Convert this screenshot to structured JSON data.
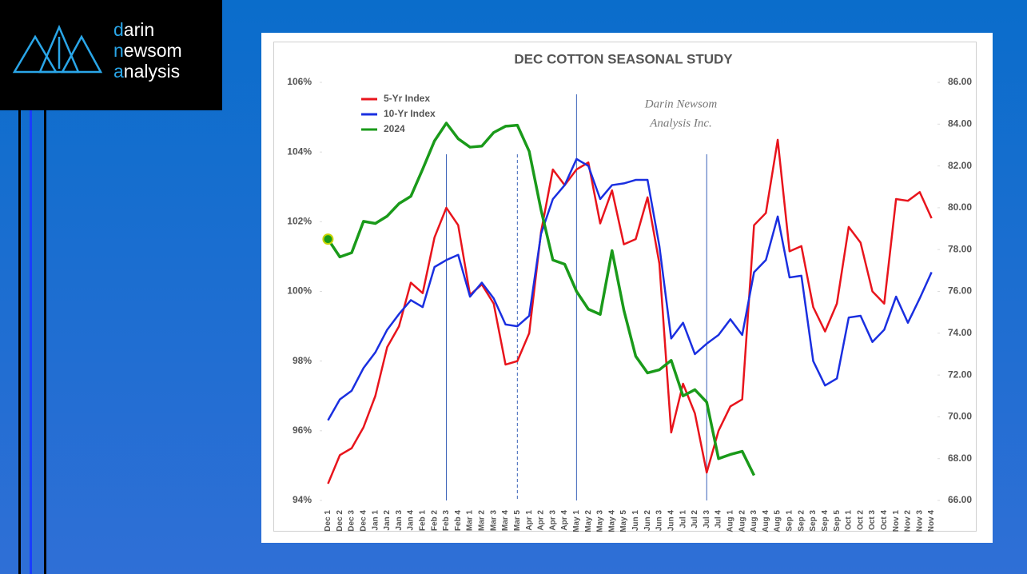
{
  "logo": {
    "lines": [
      "darin",
      "newsom",
      "analysis"
    ]
  },
  "chart_data": {
    "type": "line",
    "title": "DEC COTTON SEASONAL STUDY",
    "watermark": [
      "Darin Newsom",
      "Analysis Inc."
    ],
    "categories": [
      "Dec 1",
      "Dec 2",
      "Dec 3",
      "Dec 4",
      "Jan 1",
      "Jan 2",
      "Jan 3",
      "Jan 4",
      "Feb 1",
      "Feb 2",
      "Feb 3",
      "Feb 4",
      "Mar 1",
      "Mar 2",
      "Mar 3",
      "Mar 4",
      "Mar 5",
      "Apr 1",
      "Apr 2",
      "Apr 3",
      "Apr 4",
      "May 1",
      "May 2",
      "May 3",
      "May 4",
      "May 5",
      "Jun 1",
      "Jun 2",
      "Jun 3",
      "Jun 4",
      "Jul 1",
      "Jul 2",
      "Jul 3",
      "Jul 4",
      "Aug 1",
      "Aug 2",
      "Aug 3",
      "Aug 4",
      "Aug 5",
      "Sep 1",
      "Sep 2",
      "Sep 3",
      "Sep 4",
      "Sep 5",
      "Oct 1",
      "Oct 2",
      "Oct 3",
      "Oct 4",
      "Nov 1",
      "Nov 2",
      "Nov 3",
      "Nov 4"
    ],
    "series": [
      {
        "name": "5-Yr Index",
        "color": "#e8141c",
        "values": [
          94.48,
          95.3,
          95.5,
          96.1,
          97.0,
          98.4,
          99.0,
          100.25,
          99.95,
          101.55,
          102.4,
          101.9,
          99.9,
          100.2,
          99.65,
          97.9,
          98.0,
          98.8,
          101.7,
          103.5,
          103.05,
          103.5,
          103.7,
          101.95,
          102.9,
          101.35,
          101.5,
          102.7,
          100.8,
          95.95,
          97.35,
          96.5,
          94.8,
          96.0,
          96.7,
          96.9,
          101.9,
          102.25,
          104.35,
          101.15,
          101.3,
          99.55,
          98.85,
          99.65,
          101.85,
          101.4,
          100.0,
          99.65,
          102.65,
          102.6,
          102.85,
          102.1
        ]
      },
      {
        "name": "10-Yr Index",
        "color": "#1a2fe0",
        "values": [
          96.3,
          96.9,
          97.15,
          97.8,
          98.25,
          98.9,
          99.35,
          99.75,
          99.55,
          100.7,
          100.9,
          101.05,
          99.85,
          100.25,
          99.8,
          99.05,
          99.0,
          99.3,
          101.65,
          102.65,
          103.05,
          103.8,
          103.6,
          102.65,
          103.05,
          103.1,
          103.2,
          103.2,
          101.3,
          98.65,
          99.1,
          98.2,
          98.5,
          98.75,
          99.2,
          98.75,
          100.55,
          100.9,
          102.15,
          100.4,
          100.45,
          98.0,
          97.3,
          97.5,
          99.25,
          99.3,
          98.55,
          98.9,
          99.85,
          99.1,
          99.8,
          100.55
        ]
      },
      {
        "name": "2024",
        "color": "#1a9a1a",
        "axis": "y2",
        "values": [
          78.5,
          77.65,
          77.85,
          79.35,
          79.25,
          79.6,
          80.2,
          80.55,
          81.85,
          83.2,
          84.05,
          83.3,
          82.9,
          82.95,
          83.6,
          83.9,
          83.95,
          82.7,
          79.9,
          77.5,
          77.3,
          76.0,
          75.15,
          74.9,
          77.95,
          75.1,
          72.9,
          72.1,
          72.25,
          72.7,
          71.0,
          71.3,
          70.7,
          68.0,
          68.2,
          68.35,
          67.2,
          null,
          null,
          null,
          null,
          null,
          null,
          null,
          null,
          null,
          null,
          null,
          null,
          null,
          null,
          null
        ]
      }
    ],
    "ylim": [
      94,
      106
    ],
    "yticks": [
      {
        "value": 94,
        "label": "94%"
      },
      {
        "value": 96,
        "label": "96%"
      },
      {
        "value": 98,
        "label": "98%"
      },
      {
        "value": 100,
        "label": "100%"
      },
      {
        "value": 102,
        "label": "102%"
      },
      {
        "value": 104,
        "label": "104%"
      },
      {
        "value": 106,
        "label": "106%"
      }
    ],
    "y2lim": [
      66,
      86
    ],
    "y2ticks": [
      {
        "value": 66,
        "label": "66.00"
      },
      {
        "value": 68,
        "label": "68.00"
      },
      {
        "value": 70,
        "label": "70.00"
      },
      {
        "value": 72,
        "label": "72.00"
      },
      {
        "value": 74,
        "label": "74.00"
      },
      {
        "value": 76,
        "label": "76.00"
      },
      {
        "value": 78,
        "label": "78.00"
      },
      {
        "value": 80,
        "label": "80.00"
      },
      {
        "value": 82,
        "label": "82.00"
      },
      {
        "value": 84,
        "label": "84.00"
      },
      {
        "value": 86,
        "label": "86.00"
      }
    ],
    "legend": "upper left",
    "grid": false
  }
}
